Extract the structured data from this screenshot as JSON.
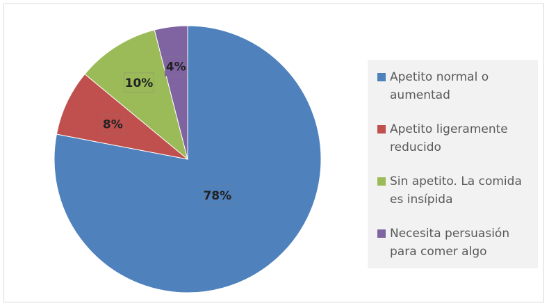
{
  "chart_data": {
    "type": "pie",
    "title": "",
    "start_angle_deg": 0,
    "direction": "clockwise",
    "slices": [
      {
        "name": "Apetito normal o aumentad",
        "value": 78,
        "label": "78%",
        "color": "#4f81bd"
      },
      {
        "name": "Apetito ligeramente reducido",
        "value": 8,
        "label": "8%",
        "color": "#c0504d"
      },
      {
        "name": "Sin apetito. La comida es insípida",
        "value": 10,
        "label": "10%",
        "color": "#9bbb59"
      },
      {
        "name": "Necesita persuasión para comer algo",
        "value": 4,
        "label": "4%",
        "color": "#8064a2"
      }
    ],
    "legend_position": "right"
  }
}
